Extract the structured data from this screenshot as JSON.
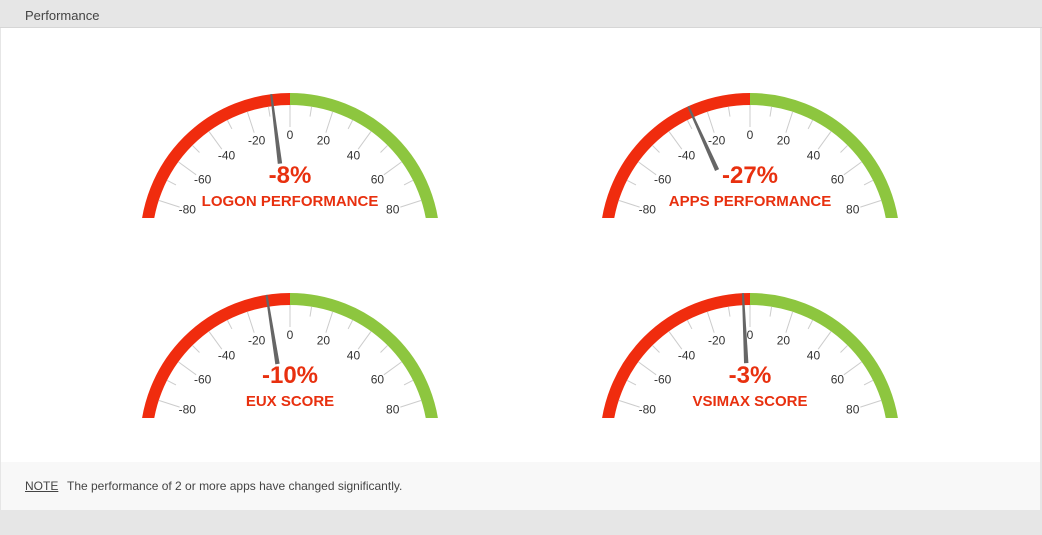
{
  "header": {
    "title": "Performance"
  },
  "colors": {
    "negative": "#f02c0e",
    "positive": "#8dc63f",
    "text_accent": "#e8300f",
    "needle": "#666666"
  },
  "gauges": [
    {
      "label": "LOGON PERFORMANCE",
      "value": -8,
      "display": "-8%"
    },
    {
      "label": "APPS PERFORMANCE",
      "value": -27,
      "display": "-27%"
    },
    {
      "label": "EUX SCORE",
      "value": -10,
      "display": "-10%"
    },
    {
      "label": "VSIMAX SCORE",
      "value": -3,
      "display": "-3%"
    }
  ],
  "scale": {
    "min": -100,
    "max": 100,
    "ticks": [
      "-100",
      "-80",
      "-60",
      "-40",
      "-20",
      "0",
      "20",
      "40",
      "60",
      "80",
      "100"
    ]
  },
  "note": {
    "label": "NOTE",
    "text": "The performance of 2 or more apps have changed significantly."
  }
}
